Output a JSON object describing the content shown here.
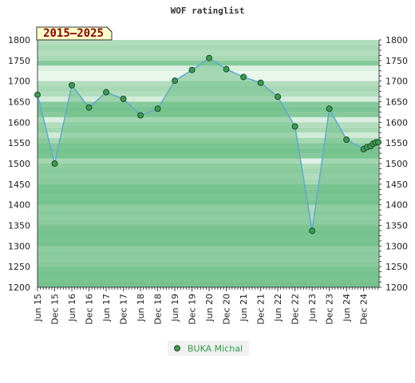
{
  "chart_data": {
    "type": "line",
    "title": "WOF ratinglist",
    "period_badge": "2015–2025",
    "ylim": [
      1200,
      1800
    ],
    "y_ticks": [
      1200,
      1250,
      1300,
      1350,
      1400,
      1450,
      1500,
      1550,
      1600,
      1650,
      1700,
      1750,
      1800
    ],
    "x_range": [
      0,
      19.9
    ],
    "x_ticks": [
      {
        "label": "Jun 15",
        "x": 0
      },
      {
        "label": "Dec 15",
        "x": 1
      },
      {
        "label": "Jun 16",
        "x": 2
      },
      {
        "label": "Dec 16",
        "x": 3
      },
      {
        "label": "Jun 17",
        "x": 4
      },
      {
        "label": "Dec 17",
        "x": 5
      },
      {
        "label": "Jun 18",
        "x": 6
      },
      {
        "label": "Dec 18",
        "x": 7
      },
      {
        "label": "Jun 19",
        "x": 8
      },
      {
        "label": "Dec 19",
        "x": 9
      },
      {
        "label": "Jun 20",
        "x": 10
      },
      {
        "label": "Dec 20",
        "x": 11
      },
      {
        "label": "Jun 21",
        "x": 12
      },
      {
        "label": "Dec 21",
        "x": 13
      },
      {
        "label": "Jun 22",
        "x": 14
      },
      {
        "label": "Dec 22",
        "x": 15
      },
      {
        "label": "Jun 23",
        "x": 16
      },
      {
        "label": "Dec 23",
        "x": 17
      },
      {
        "label": "Jun 24",
        "x": 18
      },
      {
        "label": "Dec 24",
        "x": 19
      }
    ],
    "series": [
      {
        "name": "BUKA Michal",
        "color": "#5fa8d3",
        "marker_color": "#3c9a52",
        "points": [
          [
            0,
            1667
          ],
          [
            1,
            1500
          ],
          [
            2,
            1690
          ],
          [
            3,
            1636
          ],
          [
            4,
            1673
          ],
          [
            5,
            1657
          ],
          [
            6,
            1617
          ],
          [
            7,
            1633
          ],
          [
            8,
            1701
          ],
          [
            9,
            1727
          ],
          [
            10,
            1756
          ],
          [
            11,
            1729
          ],
          [
            12,
            1710
          ],
          [
            13,
            1696
          ],
          [
            14,
            1662
          ],
          [
            15,
            1590
          ],
          [
            16,
            1337
          ],
          [
            17,
            1633
          ],
          [
            18,
            1558
          ],
          [
            19,
            1535
          ],
          [
            19.2,
            1540
          ],
          [
            19.4,
            1542
          ],
          [
            19.55,
            1548
          ],
          [
            19.7,
            1551
          ],
          [
            19.85,
            1552
          ]
        ]
      }
    ],
    "grid": true,
    "legend_position": "bottom-center"
  },
  "colors": {
    "band_dark": "#7cc594",
    "band_light": "#a6d8b4",
    "band_white": "#f3fbf5",
    "area_fill": "#6fbf86",
    "badge_fill": "#ffffcc"
  }
}
